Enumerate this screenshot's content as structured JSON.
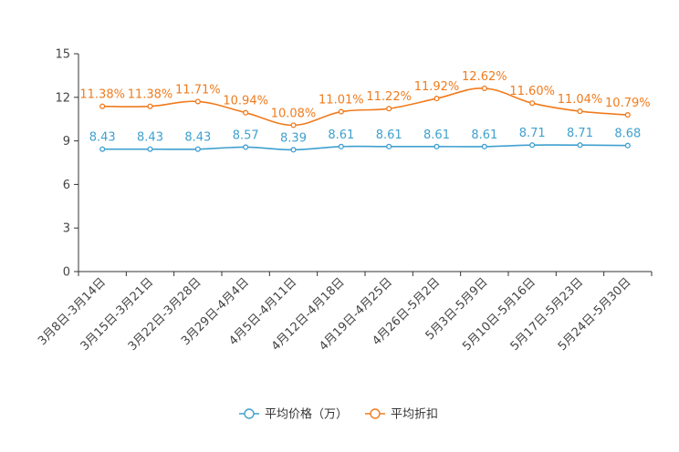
{
  "chart_data": {
    "type": "line",
    "categories": [
      "3月8日-3月14日",
      "3月15日-3月21日",
      "3月22日-3月28日",
      "3月29日-4月4日",
      "4月5日-4月11日",
      "4月12日-4月18日",
      "4月19日-4月25日",
      "4月26日-5月2日",
      "5月3日-5月9日",
      "5月10日-5月16日",
      "5月17日-5月23日",
      "5月24日-5月30日"
    ],
    "series": [
      {
        "name": "平均价格（万）",
        "color": "#3fa0cf",
        "values": [
          8.43,
          8.43,
          8.43,
          8.57,
          8.39,
          8.61,
          8.61,
          8.61,
          8.61,
          8.71,
          8.71,
          8.68
        ],
        "labels": [
          "8.43",
          "8.43",
          "8.43",
          "8.57",
          "8.39",
          "8.61",
          "8.61",
          "8.61",
          "8.61",
          "8.71",
          "8.71",
          "8.68"
        ]
      },
      {
        "name": "平均折扣",
        "color": "#f07b1d",
        "values": [
          11.38,
          11.38,
          11.71,
          10.94,
          10.08,
          11.01,
          11.22,
          11.92,
          12.62,
          11.6,
          11.04,
          10.79
        ],
        "labels": [
          "11.38%",
          "11.38%",
          "11.71%",
          "10.94%",
          "10.08%",
          "11.01%",
          "11.22%",
          "11.92%",
          "12.62%",
          "11.60%",
          "11.04%",
          "10.79%"
        ]
      }
    ],
    "y_ticks": [
      "0",
      "3",
      "6",
      "9",
      "12",
      "15"
    ],
    "ylim": [
      0,
      15
    ],
    "title": "",
    "xlabel": "",
    "ylabel": "",
    "grid": false,
    "legend_position": "bottom-center"
  }
}
